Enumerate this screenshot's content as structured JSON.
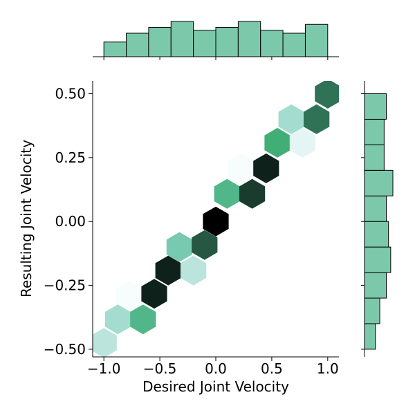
{
  "chart_data": {
    "type": "hexbin",
    "title": "",
    "xlabel": "Desired Joint Velocity",
    "ylabel": "Resulting Joint Velocity",
    "xlim": [
      -1.1,
      1.1
    ],
    "ylim": [
      -0.53,
      0.55
    ],
    "x_ticks": [
      -1.0,
      -0.5,
      0.0,
      0.5,
      1.0
    ],
    "x_tick_labels": [
      "−1.0",
      "−0.5",
      "0.0",
      "0.5",
      "1.0"
    ],
    "y_ticks": [
      -0.5,
      -0.25,
      0.0,
      0.25,
      0.5
    ],
    "y_tick_labels": [
      "−0.50",
      "−0.25",
      "0.00",
      "0.25",
      "0.50"
    ],
    "colormap": "BuGn",
    "hexbins": [
      {
        "x": -1.0,
        "y": -0.475,
        "count": 4
      },
      {
        "x": -0.875,
        "y": -0.383,
        "count": 5
      },
      {
        "x": -0.65,
        "y": -0.383,
        "count": 9
      },
      {
        "x": -0.775,
        "y": -0.292,
        "count": 1
      },
      {
        "x": -0.55,
        "y": -0.283,
        "count": 15
      },
      {
        "x": -0.425,
        "y": -0.192,
        "count": 15
      },
      {
        "x": -0.2,
        "y": -0.192,
        "count": 4
      },
      {
        "x": -0.325,
        "y": -0.1,
        "count": 7
      },
      {
        "x": -0.1,
        "y": -0.092,
        "count": 13
      },
      {
        "x": 0.0,
        "y": 0.0,
        "count": 16
      },
      {
        "x": 0.1,
        "y": 0.108,
        "count": 9
      },
      {
        "x": 0.325,
        "y": 0.108,
        "count": 14
      },
      {
        "x": 0.225,
        "y": 0.208,
        "count": 1
      },
      {
        "x": 0.45,
        "y": 0.208,
        "count": 15
      },
      {
        "x": 0.55,
        "y": 0.308,
        "count": 10
      },
      {
        "x": 0.775,
        "y": 0.308,
        "count": 2
      },
      {
        "x": 0.675,
        "y": 0.4,
        "count": 5
      },
      {
        "x": 0.9,
        "y": 0.4,
        "count": 12
      },
      {
        "x": 1.0,
        "y": 0.5,
        "count": 12
      }
    ],
    "count_max": 16,
    "marginal_color": "#7cc8aa",
    "marginal_edge": "#000000",
    "top_histogram": {
      "bin_edges": [
        -1.0,
        -0.8,
        -0.6,
        -0.4,
        -0.2,
        0.0,
        0.2,
        0.4,
        0.6,
        0.8,
        1.0
      ],
      "counts": [
        5,
        8,
        10,
        12,
        9,
        10,
        12,
        9,
        8,
        11
      ]
    },
    "right_histogram": {
      "bin_edges": [
        -0.5,
        -0.4,
        -0.3,
        -0.2,
        -0.1,
        0.0,
        0.1,
        0.2,
        0.3,
        0.4,
        0.5
      ],
      "counts": [
        5,
        7,
        10,
        12,
        11,
        10,
        13,
        9,
        9,
        10
      ]
    }
  }
}
